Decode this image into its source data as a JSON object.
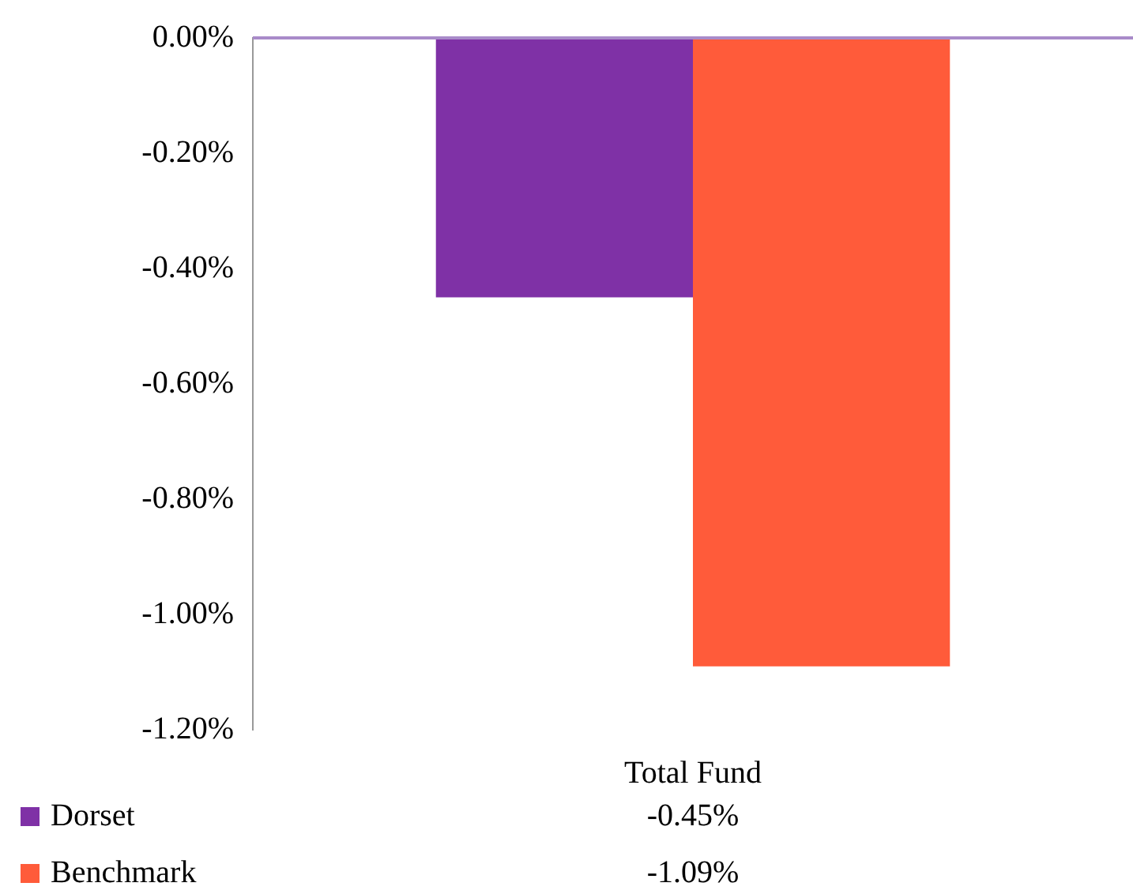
{
  "chart_data": {
    "type": "bar",
    "categories": [
      "Total Fund"
    ],
    "series": [
      {
        "name": "Dorset",
        "color": "#7f31a6",
        "values": [
          -0.45
        ]
      },
      {
        "name": "Benchmark",
        "color": "#ff5b3a",
        "values": [
          -1.09
        ]
      }
    ],
    "ylim": [
      -1.2,
      0
    ],
    "yticks": [
      {
        "value": 0,
        "label": "0.00%"
      },
      {
        "value": -0.2,
        "label": "-0.20%"
      },
      {
        "value": -0.4,
        "label": "-0.40%"
      },
      {
        "value": -0.6,
        "label": "-0.60%"
      },
      {
        "value": -0.8,
        "label": "-0.80%"
      },
      {
        "value": -1,
        "label": "-1.00%"
      },
      {
        "value": -1.2,
        "label": "-1.20%"
      }
    ],
    "value_labels": [
      [
        "-0.45%"
      ],
      [
        "-1.09%"
      ]
    ],
    "legend": "bottom left",
    "grid": false
  }
}
